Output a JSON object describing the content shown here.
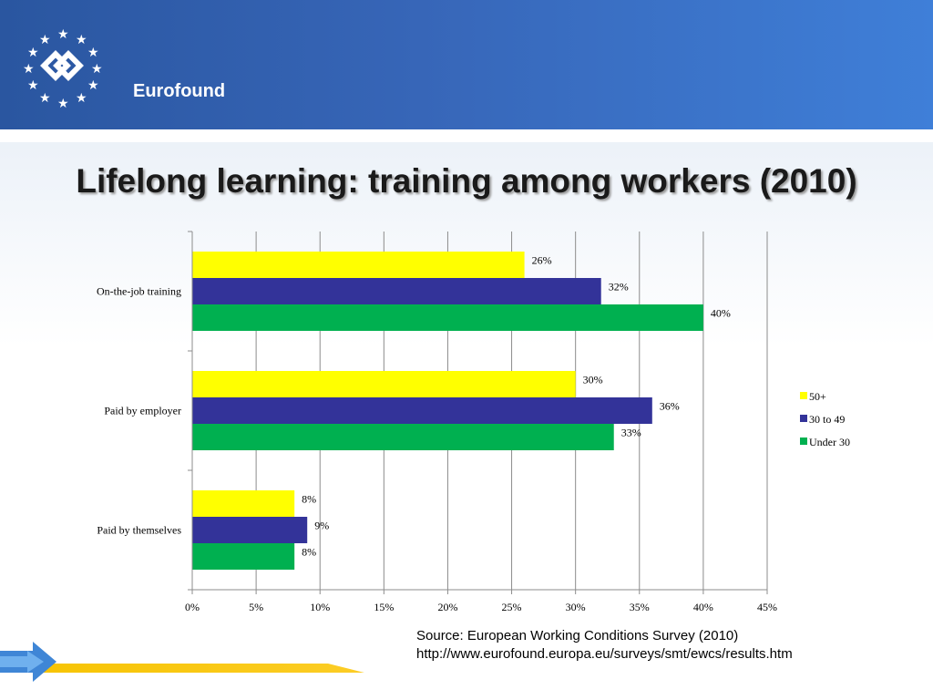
{
  "slide": {
    "logo_text": "Eurofound",
    "title": "Lifelong learning: training among workers (2010)",
    "source_line1": "Source: European Working Conditions Survey (2010)",
    "source_line2": "http://www.eurofound.europa.eu/surveys/smt/ewcs/results.htm"
  },
  "colors": {
    "header": "#3766b8",
    "accent_yellow": "#f6c300"
  },
  "chart_data": {
    "type": "bar",
    "orientation": "horizontal",
    "categories": [
      "On-the-job training",
      "Paid  by  employer",
      "Paid  by themselves"
    ],
    "series": [
      {
        "name": "50+",
        "color": "#ffff00",
        "values": [
          26,
          30,
          8
        ],
        "labels": [
          "26%",
          "30%",
          "8%"
        ]
      },
      {
        "name": "30 to 49",
        "color": "#333399",
        "values": [
          32,
          36,
          9
        ],
        "labels": [
          "32%",
          "36%",
          "9%"
        ]
      },
      {
        "name": "Under 30",
        "color": "#00b050",
        "values": [
          40,
          33,
          8
        ],
        "labels": [
          "40%",
          "33%",
          "8%"
        ]
      }
    ],
    "xlim": [
      0,
      45
    ],
    "xticks": [
      "0%",
      "5%",
      "10%",
      "15%",
      "20%",
      "25%",
      "30%",
      "35%",
      "40%",
      "45%"
    ],
    "grid": true,
    "legend_position": "right"
  }
}
